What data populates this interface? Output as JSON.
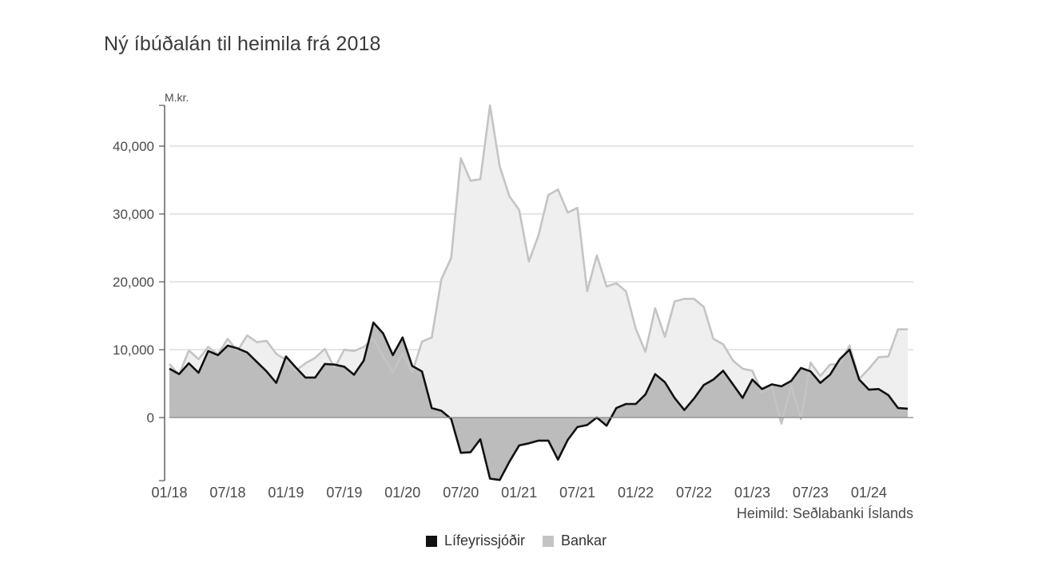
{
  "colors": {
    "pension_line": "#111111",
    "pension_fill": "#bcbcbc",
    "bank_line": "#c4c4c4",
    "bank_fill": "#efefef",
    "grid": "#d6d6d6",
    "axis": "#555555",
    "zero_line": "#888888"
  },
  "chart_data": {
    "type": "area",
    "title": "Ný íbúðalán til heimila frá 2018",
    "ylabel": "M.kr.",
    "xlabel": "",
    "source": "Heimild: Seðlabanki Íslands",
    "ylim": [
      -9300,
      46000
    ],
    "yticks": [
      0,
      10000,
      20000,
      30000,
      40000
    ],
    "ytick_labels": [
      "0",
      "10,000",
      "20,000",
      "30,000",
      "40,000"
    ],
    "xtick_indices": [
      0,
      6,
      12,
      18,
      24,
      30,
      36,
      42,
      48,
      54,
      60,
      66,
      72
    ],
    "xtick_labels": [
      "01/18",
      "07/18",
      "01/19",
      "07/19",
      "01/20",
      "07/20",
      "01/21",
      "07/21",
      "01/22",
      "07/22",
      "01/23",
      "07/23",
      "01/24"
    ],
    "x_start": "01/18",
    "n_points": 77,
    "grid": true,
    "legend": "bottom-center",
    "series": [
      {
        "name": "Lífeyrissjóðir",
        "values": [
          7200,
          6400,
          8000,
          6600,
          9800,
          9200,
          10600,
          10200,
          9600,
          8200,
          6800,
          5100,
          9000,
          7400,
          5900,
          5900,
          7900,
          7800,
          7500,
          6300,
          8400,
          14000,
          12400,
          9200,
          11800,
          7600,
          6800,
          1400,
          1000,
          -200,
          -5200,
          -5100,
          -3200,
          -9000,
          -9200,
          -6500,
          -4100,
          -3800,
          -3400,
          -3400,
          -6200,
          -3300,
          -1400,
          -1100,
          0,
          -1200,
          1400,
          2000,
          2000,
          3400,
          6400,
          5200,
          2900,
          1100,
          2800,
          4800,
          5600,
          6900,
          4900,
          2900,
          5600,
          4200,
          4900,
          4600,
          5400,
          7300,
          6800,
          5100,
          6300,
          8600,
          10000,
          5600,
          4100,
          4200,
          3300,
          1400,
          1300
        ]
      },
      {
        "name": "Bankar",
        "values": [
          7900,
          6300,
          9900,
          8600,
          10400,
          9300,
          11600,
          9800,
          12100,
          11100,
          11300,
          9400,
          8500,
          6900,
          8000,
          8800,
          10100,
          7300,
          10000,
          9800,
          10400,
          11600,
          9000,
          6700,
          9400,
          6700,
          11200,
          11800,
          20400,
          23500,
          38200,
          34900,
          35100,
          46000,
          37000,
          32600,
          30600,
          23000,
          26900,
          32800,
          33600,
          30200,
          30900,
          18600,
          23900,
          19300,
          19800,
          18600,
          13100,
          9700,
          16100,
          11900,
          17100,
          17500,
          17500,
          16300,
          11600,
          10800,
          8400,
          7200,
          6900,
          3700,
          4600,
          -900,
          4700,
          -200,
          8100,
          6100,
          7800,
          7900,
          10600,
          5700,
          7200,
          8900,
          9000,
          13000,
          13000
        ]
      }
    ]
  },
  "legend": {
    "items": [
      {
        "label": "Lífeyrissjóðir",
        "color": "#111111"
      },
      {
        "label": "Bankar",
        "color": "#c4c4c4"
      }
    ]
  }
}
